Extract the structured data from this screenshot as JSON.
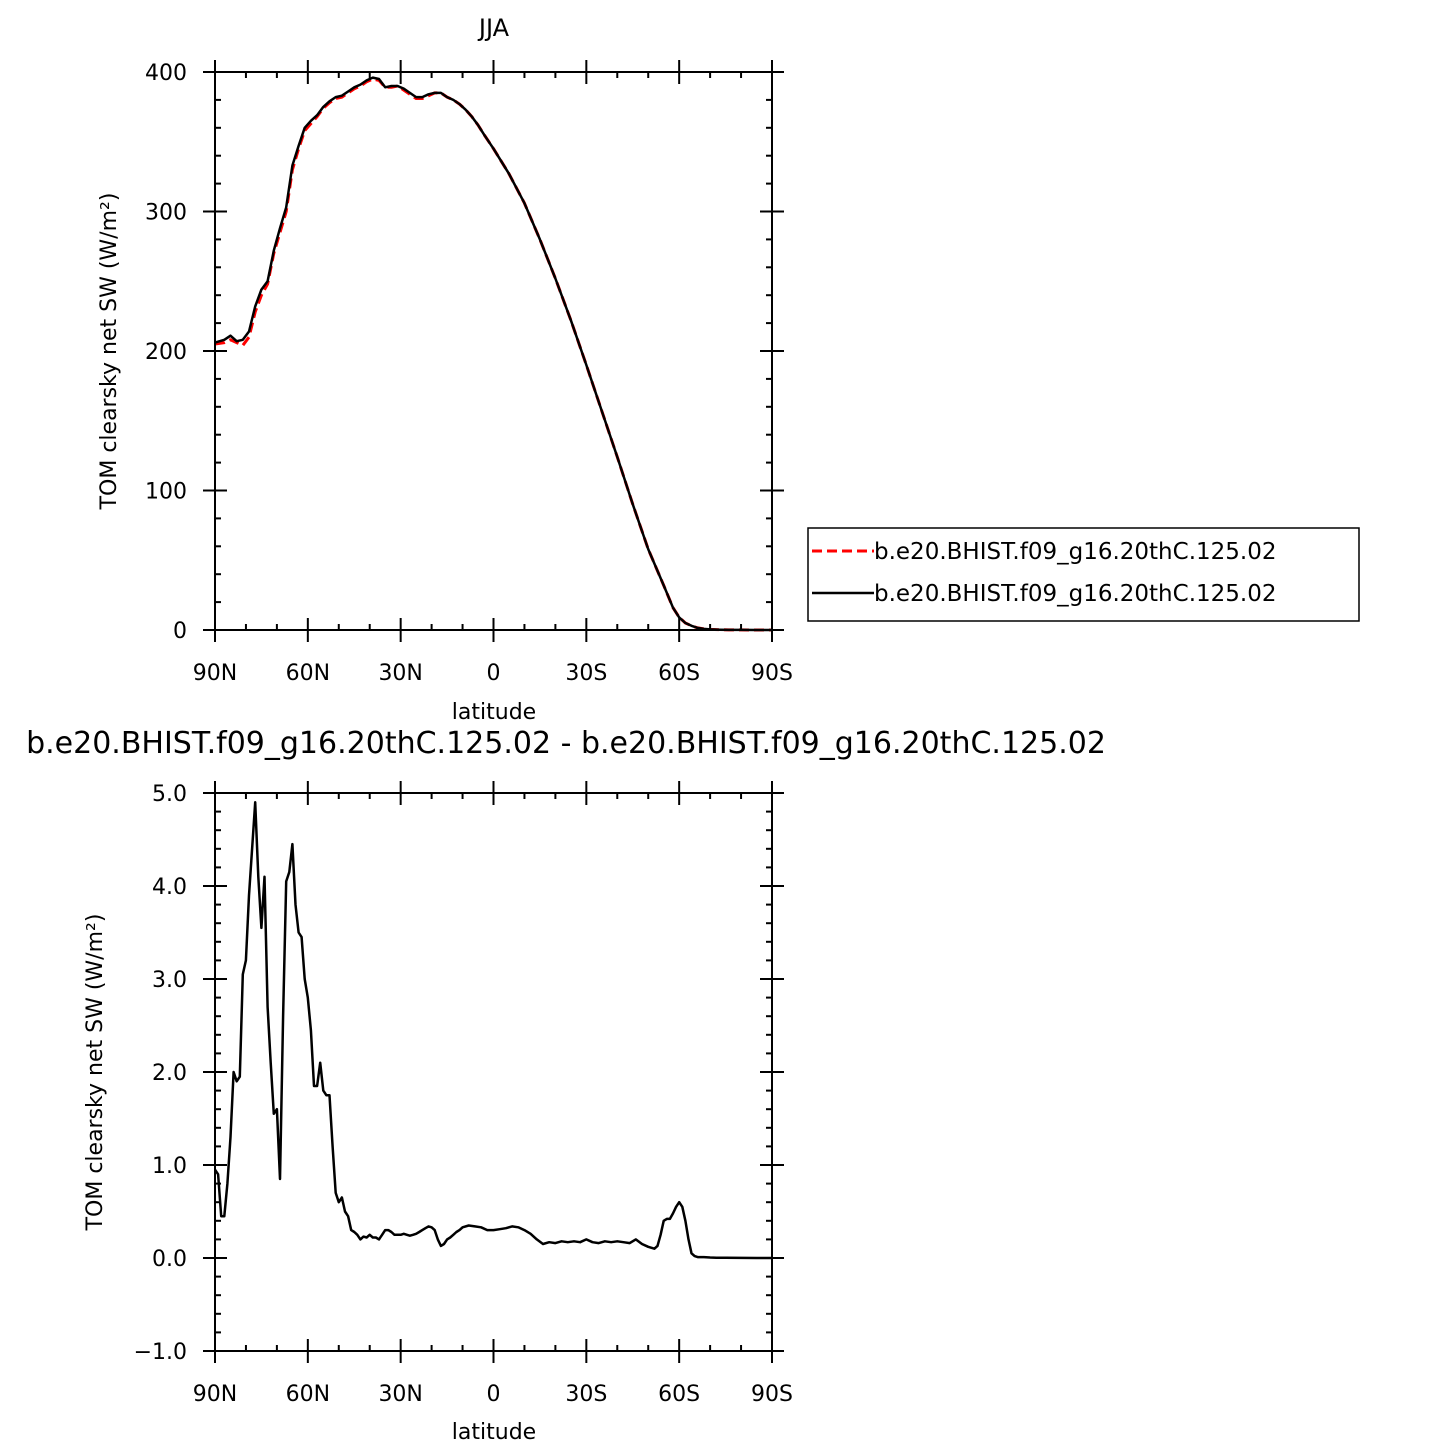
{
  "chart_data": [
    {
      "type": "line",
      "title": "JJA",
      "xlabel": "latitude",
      "ylabel": "TOM clearsky net SW (W/m²)",
      "ylim": [
        0,
        400
      ],
      "xlim": [
        90,
        -90
      ],
      "x_ticks": [
        90,
        60,
        30,
        0,
        -30,
        -60,
        -90
      ],
      "x_tick_labels": [
        "90N",
        "60N",
        "30N",
        "0",
        "30S",
        "60S",
        "90S"
      ],
      "y_ticks": [
        0,
        100,
        200,
        300,
        400
      ],
      "y_tick_labels": [
        "0",
        "100",
        "200",
        "300",
        "400"
      ],
      "grid": false,
      "legend_position": "right",
      "series": [
        {
          "name": "b.e20.BHIST.f09_g16.20thC.125.02",
          "color": "#ff0000",
          "style": "dashed",
          "x": [
            90,
            87,
            85,
            83,
            81,
            79,
            77,
            75,
            73,
            71,
            69,
            67,
            65,
            63,
            61,
            59,
            57,
            55,
            53,
            51,
            49,
            47,
            45,
            43,
            41,
            39,
            37,
            35,
            33,
            31,
            29,
            27,
            25,
            23,
            21,
            19,
            17,
            15,
            13,
            11,
            9,
            7,
            5,
            3,
            0,
            -5,
            -10,
            -15,
            -20,
            -25,
            -30,
            -35,
            -40,
            -45,
            -50,
            -55,
            -58,
            -60,
            -62,
            -64,
            -66,
            -68,
            -70,
            -73,
            -76,
            -80,
            -85,
            -90
          ],
          "values": [
            205,
            206,
            208,
            206,
            204,
            210,
            228,
            240,
            248,
            270,
            285,
            300,
            330,
            345,
            358,
            363,
            368,
            374,
            378,
            381,
            382,
            385,
            388,
            390,
            393,
            395,
            394,
            389,
            389,
            390,
            387,
            384,
            381,
            381,
            383,
            385,
            385,
            382,
            380,
            377,
            373,
            368,
            362,
            355,
            345,
            327,
            306,
            280,
            252,
            222,
            190,
            157,
            124,
            90,
            58,
            32,
            16,
            9,
            5,
            3,
            1.5,
            0.8,
            0.4,
            0.2,
            0.1,
            0.05,
            0.02,
            0
          ]
        },
        {
          "name": "b.e20.BHIST.f09_g16.20thC.125.02",
          "color": "#000000",
          "style": "solid",
          "x": [
            90,
            87,
            85,
            83,
            81,
            79,
            77,
            75,
            73,
            71,
            69,
            67,
            65,
            63,
            61,
            59,
            57,
            55,
            53,
            51,
            49,
            47,
            45,
            43,
            41,
            39,
            37,
            35,
            33,
            31,
            29,
            27,
            25,
            23,
            21,
            19,
            17,
            15,
            13,
            11,
            9,
            7,
            5,
            3,
            0,
            -5,
            -10,
            -15,
            -20,
            -25,
            -30,
            -35,
            -40,
            -45,
            -50,
            -55,
            -58,
            -60,
            -62,
            -64,
            -66,
            -68,
            -70,
            -73,
            -76,
            -80,
            -85,
            -90
          ],
          "values": [
            206,
            208,
            211,
            207,
            208,
            214,
            232,
            244,
            250,
            272,
            288,
            303,
            333,
            347,
            360,
            365,
            369,
            375,
            379,
            382,
            383,
            386,
            389,
            391,
            394,
            396,
            395,
            389,
            390,
            390,
            388,
            385,
            382,
            382,
            384,
            385,
            385,
            382,
            380,
            377,
            373,
            368,
            362,
            355,
            345,
            327,
            306,
            280,
            252,
            222,
            190,
            157,
            124,
            90,
            58,
            32,
            16,
            9,
            5,
            3,
            1.5,
            0.8,
            0.4,
            0.2,
            0.1,
            0.05,
            0.02,
            0
          ]
        }
      ]
    },
    {
      "type": "line",
      "title": "b.e20.BHIST.f09_g16.20thC.125.02 - b.e20.BHIST.f09_g16.20thC.125.02",
      "xlabel": "latitude",
      "ylabel": "TOM clearsky net SW (W/m²)",
      "ylim": [
        -1,
        5
      ],
      "xlim": [
        90,
        -90
      ],
      "x_ticks": [
        90,
        60,
        30,
        0,
        -30,
        -60,
        -90
      ],
      "x_tick_labels": [
        "90N",
        "60N",
        "30N",
        "0",
        "30S",
        "60S",
        "90S"
      ],
      "y_ticks": [
        -1,
        0,
        1,
        2,
        3,
        4,
        5
      ],
      "y_tick_labels": [
        "−1.0",
        "0.0",
        "1.0",
        "2.0",
        "3.0",
        "4.0",
        "5.0"
      ],
      "grid": false,
      "series": [
        {
          "color": "#000000",
          "style": "solid",
          "x": [
            90,
            89,
            88,
            87,
            86,
            85,
            84,
            83,
            82,
            81,
            80,
            79,
            78,
            77,
            76,
            75,
            74,
            73,
            72,
            71,
            70,
            69,
            68,
            67,
            66,
            65,
            64,
            63,
            62,
            61,
            60,
            59,
            58,
            57,
            56,
            55,
            54,
            53,
            52,
            51,
            50,
            49,
            48,
            47,
            46,
            45,
            44,
            43,
            42,
            41,
            40,
            39,
            38,
            37,
            36,
            35,
            34,
            33,
            32,
            31,
            30,
            29,
            28,
            27,
            26,
            25,
            24,
            23,
            22,
            21,
            20,
            19,
            18,
            17,
            16,
            15,
            14,
            13,
            12,
            11,
            10,
            8,
            6,
            4,
            2,
            0,
            -2,
            -4,
            -6,
            -8,
            -10,
            -12,
            -14,
            -16,
            -18,
            -20,
            -22,
            -24,
            -26,
            -28,
            -30,
            -32,
            -34,
            -36,
            -38,
            -40,
            -42,
            -44,
            -46,
            -48,
            -50,
            -52,
            -53,
            -54,
            -55,
            -56,
            -57,
            -58,
            -59,
            -60,
            -61,
            -62,
            -63,
            -64,
            -65,
            -66,
            -67,
            -68,
            -70,
            -72,
            -75,
            -80,
            -85,
            -90
          ],
          "values": [
            0.95,
            0.9,
            0.45,
            0.45,
            0.8,
            1.3,
            2.0,
            1.9,
            1.95,
            3.05,
            3.2,
            3.9,
            4.4,
            4.9,
            4.1,
            3.55,
            4.1,
            2.7,
            2.1,
            1.55,
            1.6,
            0.85,
            2.6,
            4.05,
            4.15,
            4.45,
            3.8,
            3.5,
            3.45,
            3.0,
            2.8,
            2.45,
            1.85,
            1.85,
            2.1,
            1.8,
            1.75,
            1.75,
            1.2,
            0.7,
            0.6,
            0.65,
            0.5,
            0.45,
            0.3,
            0.28,
            0.25,
            0.2,
            0.23,
            0.22,
            0.25,
            0.22,
            0.22,
            0.2,
            0.25,
            0.3,
            0.3,
            0.28,
            0.25,
            0.25,
            0.25,
            0.26,
            0.25,
            0.24,
            0.25,
            0.26,
            0.28,
            0.3,
            0.32,
            0.34,
            0.33,
            0.3,
            0.2,
            0.13,
            0.15,
            0.2,
            0.22,
            0.25,
            0.28,
            0.3,
            0.33,
            0.35,
            0.34,
            0.33,
            0.3,
            0.3,
            0.31,
            0.32,
            0.34,
            0.33,
            0.3,
            0.26,
            0.2,
            0.15,
            0.17,
            0.16,
            0.18,
            0.17,
            0.18,
            0.17,
            0.2,
            0.17,
            0.16,
            0.18,
            0.17,
            0.18,
            0.17,
            0.16,
            0.2,
            0.15,
            0.12,
            0.1,
            0.13,
            0.25,
            0.4,
            0.42,
            0.42,
            0.48,
            0.55,
            0.6,
            0.55,
            0.4,
            0.2,
            0.05,
            0.02,
            0.01,
            0.01,
            0.01,
            0.005,
            0.003,
            0.002,
            0.001,
            0.0,
            0.0
          ]
        }
      ]
    }
  ],
  "legend": {
    "entries": [
      "b.e20.BHIST.f09_g16.20thC.125.02",
      "b.e20.BHIST.f09_g16.20thC.125.02"
    ]
  }
}
